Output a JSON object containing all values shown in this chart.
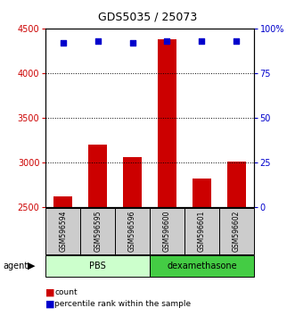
{
  "title": "GDS5035 / 25073",
  "samples": [
    "GSM596594",
    "GSM596595",
    "GSM596596",
    "GSM596600",
    "GSM596601",
    "GSM596602"
  ],
  "counts": [
    2620,
    3200,
    3060,
    4380,
    2820,
    3010
  ],
  "percentile_ranks": [
    92,
    93,
    92,
    93,
    93,
    93
  ],
  "ylim_left": [
    2500,
    4500
  ],
  "ylim_right": [
    0,
    100
  ],
  "yticks_left": [
    2500,
    3000,
    3500,
    4000,
    4500
  ],
  "yticks_right": [
    0,
    25,
    50,
    75,
    100
  ],
  "bar_color": "#cc0000",
  "dot_color": "#0000cc",
  "groups": [
    {
      "label": "PBS",
      "indices": [
        0,
        1,
        2
      ],
      "color": "#ccffcc"
    },
    {
      "label": "dexamethasone",
      "indices": [
        3,
        4,
        5
      ],
      "color": "#44cc44"
    }
  ],
  "agent_label": "agent",
  "legend_count_label": "count",
  "legend_pct_label": "percentile rank within the sample",
  "left_axis_color": "#cc0000",
  "right_axis_color": "#0000cc",
  "bar_bottom": 2500,
  "grid_color": "#000000",
  "bg_color": "#ffffff",
  "sample_bg": "#cccccc"
}
